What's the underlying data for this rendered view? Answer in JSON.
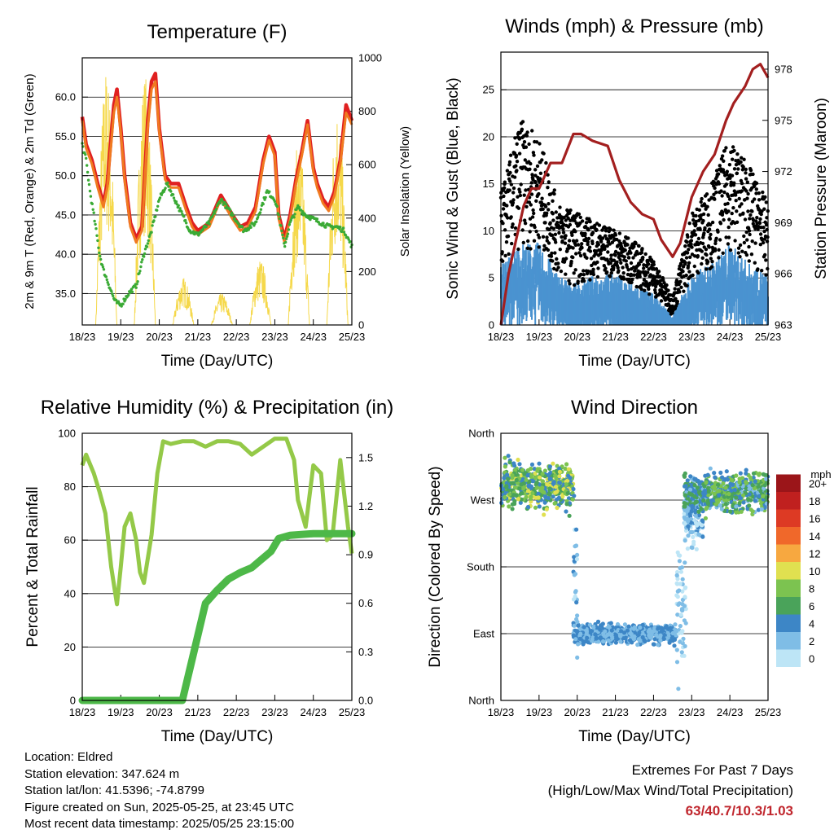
{
  "chart_data": [
    {
      "type": "line",
      "title": "Temperature (F)",
      "xlabel": "Time (Day/UTC)",
      "ylabel": "2m & 9m T (Red, Orange) & 2m Td (Green)",
      "y2label": "Solar Insolation (Yellow)",
      "x_ticks": [
        "18/23",
        "19/23",
        "20/23",
        "21/23",
        "22/23",
        "23/23",
        "24/23",
        "25/23"
      ],
      "ylim": [
        31,
        65
      ],
      "y_ticks": [
        "35.0",
        "40.0",
        "45.0",
        "50.0",
        "55.0",
        "60.0"
      ],
      "y2lim": [
        0,
        1000
      ],
      "y2_ticks": [
        "0",
        "200",
        "400",
        "600",
        "800",
        "1000"
      ],
      "grid": true,
      "series": [
        {
          "name": "2m T",
          "color": "#e02020",
          "x": [
            0,
            0.1,
            0.25,
            0.4,
            0.55,
            0.65,
            0.75,
            0.82,
            0.9,
            1,
            1.1,
            1.25,
            1.4,
            1.55,
            1.7,
            1.8,
            1.9,
            2,
            2.15,
            2.3,
            2.5,
            2.7,
            2.85,
            3,
            3.3,
            3.6,
            3.9,
            4.1,
            4.3,
            4.5,
            4.7,
            4.85,
            5,
            5.1,
            5.25,
            5.4,
            5.55,
            5.7,
            5.85,
            6,
            6.1,
            6.25,
            6.4,
            6.55,
            6.7,
            6.85,
            7
          ],
          "y": [
            57.5,
            54,
            52,
            49,
            46.5,
            49,
            55,
            59,
            61,
            56,
            50,
            44,
            42,
            43.5,
            57,
            62,
            63,
            56,
            50,
            49,
            49,
            46,
            44,
            43,
            44,
            47.5,
            45,
            43.5,
            44,
            46,
            52,
            55,
            53,
            45,
            42,
            45,
            49.5,
            53,
            57,
            51,
            49,
            47,
            46,
            48,
            52,
            59,
            57
          ]
        },
        {
          "name": "9m T",
          "color": "#f07a20",
          "x": [
            0,
            0.1,
            0.25,
            0.4,
            0.55,
            0.65,
            0.75,
            0.82,
            0.9,
            1,
            1.1,
            1.25,
            1.4,
            1.55,
            1.7,
            1.8,
            1.9,
            2,
            2.15,
            2.3,
            2.5,
            2.7,
            2.85,
            3,
            3.3,
            3.6,
            3.9,
            4.1,
            4.3,
            4.5,
            4.7,
            4.85,
            5,
            5.1,
            5.25,
            5.4,
            5.55,
            5.7,
            5.85,
            6,
            6.1,
            6.25,
            6.4,
            6.55,
            6.7,
            6.85,
            7
          ],
          "y": [
            57,
            53.5,
            51.5,
            48.5,
            46,
            48.5,
            54,
            58,
            60,
            55.5,
            49.5,
            43.5,
            41.5,
            43,
            56,
            61,
            62,
            55.5,
            49.5,
            48.5,
            48.5,
            45.5,
            43.5,
            42.5,
            43.5,
            47,
            44.5,
            43,
            43.5,
            45.5,
            51.5,
            54.5,
            52.5,
            44.5,
            41.5,
            44.5,
            49,
            52.5,
            56.5,
            50.5,
            48.5,
            46.5,
            45.5,
            47.5,
            51.5,
            58,
            56.5
          ]
        },
        {
          "name": "2m Td",
          "color": "#3aaa35",
          "x": [
            0,
            0.1,
            0.2,
            0.3,
            0.45,
            0.55,
            0.7,
            0.85,
            1,
            1.2,
            1.4,
            1.6,
            1.8,
            2,
            2.2,
            2.4,
            2.6,
            2.8,
            3,
            3.3,
            3.6,
            3.9,
            4.2,
            4.5,
            4.8,
            5,
            5.1,
            5.25,
            5.4,
            5.6,
            5.8,
            6,
            6.2,
            6.4,
            6.6,
            6.8,
            7
          ],
          "y": [
            54,
            52,
            48,
            45,
            40,
            38,
            36,
            34,
            33.5,
            35,
            36,
            40,
            43,
            47,
            49,
            47,
            45,
            43,
            42.5,
            44,
            47,
            45,
            43,
            44,
            48,
            47,
            45,
            41,
            44,
            46,
            45,
            44.5,
            44,
            43.5,
            43.5,
            43,
            41
          ]
        }
      ],
      "solar_series": {
        "name": "Solar Insolation",
        "color": "#f5d84a",
        "daily_peaks": [
          970,
          950,
          180,
          120,
          250,
          700,
          840
        ]
      }
    },
    {
      "type": "scatter",
      "title": "Winds (mph) & Pressure (mb)",
      "xlabel": "Time (Day/UTC)",
      "ylabel": "Sonic Wind & Gust (Blue, Black)",
      "y2label": "Station Pressure (Maroon)",
      "x_ticks": [
        "18/23",
        "19/23",
        "20/23",
        "21/23",
        "22/23",
        "23/23",
        "24/23",
        "25/23"
      ],
      "ylim": [
        0,
        29
      ],
      "y_ticks": [
        "0",
        "5",
        "10",
        "15",
        "20",
        "25"
      ],
      "y2lim": [
        963,
        979
      ],
      "y2_ticks": [
        "963",
        "966",
        "969",
        "972",
        "975",
        "978"
      ],
      "grid": true,
      "gust_envelope": {
        "x": [
          0,
          0.5,
          1,
          1.5,
          2,
          2.5,
          3,
          3.5,
          4,
          4.5,
          5,
          5.5,
          6,
          6.5,
          7
        ],
        "y": [
          14,
          22,
          20,
          13,
          12,
          11,
          10,
          9,
          7,
          3,
          12,
          15,
          20,
          17,
          13
        ]
      },
      "wind_envelope": {
        "x": [
          0,
          0.5,
          1,
          1.5,
          2,
          2.5,
          3,
          3.5,
          4,
          4.5,
          5,
          5.5,
          6,
          6.5,
          7
        ],
        "y": [
          6,
          8,
          8,
          5,
          4,
          5,
          5,
          4,
          3,
          1,
          5,
          6,
          8,
          6,
          5
        ]
      },
      "pressure": {
        "name": "Station Pressure",
        "color": "#a31f1f",
        "x": [
          0,
          0.2,
          0.4,
          0.6,
          0.8,
          1,
          1.3,
          1.6,
          1.9,
          2.1,
          2.4,
          2.8,
          3.1,
          3.4,
          3.7,
          4,
          4.2,
          4.5,
          4.7,
          5,
          5.3,
          5.6,
          5.9,
          6.1,
          6.4,
          6.6,
          6.8,
          7
        ],
        "y": [
          963,
          966,
          968,
          970,
          971,
          971,
          972.5,
          972.5,
          974.2,
          974.2,
          973.8,
          973.5,
          971.5,
          970.2,
          969.5,
          969.2,
          968,
          967,
          967.8,
          970.5,
          972,
          973,
          975,
          976,
          977,
          978,
          978.3,
          977.5
        ]
      }
    },
    {
      "type": "line",
      "title": "Relative Humidity (%) & Precipitation (in)",
      "xlabel": "Time (Day/UTC)",
      "ylabel": "Percent & Total Rainfall",
      "x_ticks": [
        "18/23",
        "19/23",
        "20/23",
        "21/23",
        "22/23",
        "23/23",
        "24/23",
        "25/23"
      ],
      "ylim": [
        0,
        100
      ],
      "y_ticks": [
        "0",
        "20",
        "40",
        "60",
        "80",
        "100"
      ],
      "y2lim": [
        0,
        1.65
      ],
      "y2_ticks": [
        "0.0",
        "0.3",
        "0.6",
        "0.9",
        "1.2",
        "1.5"
      ],
      "grid": true,
      "series": [
        {
          "name": "Relative Humidity",
          "color": "#94c948",
          "x": [
            0,
            0.1,
            0.3,
            0.45,
            0.6,
            0.75,
            0.9,
            1,
            1.1,
            1.25,
            1.4,
            1.5,
            1.6,
            1.8,
            1.95,
            2.1,
            2.3,
            2.6,
            2.9,
            3.2,
            3.5,
            3.8,
            4.1,
            4.4,
            4.7,
            5,
            5.3,
            5.5,
            5.6,
            5.8,
            6,
            6.2,
            6.35,
            6.5,
            6.7,
            6.9,
            7
          ],
          "y": [
            88,
            92,
            85,
            78,
            70,
            50,
            36,
            50,
            65,
            70,
            60,
            48,
            44,
            62,
            85,
            97,
            96,
            97,
            97,
            95,
            97,
            97,
            96,
            92,
            95,
            98,
            98,
            90,
            75,
            65,
            88,
            85,
            60,
            62,
            90,
            65,
            55
          ]
        },
        {
          "name": "Total Rainfall",
          "color": "#4db848",
          "x": [
            0,
            2.6,
            2.75,
            2.9,
            3.05,
            3.2,
            3.5,
            3.8,
            4.1,
            4.4,
            4.6,
            4.9,
            5.1,
            5.4,
            6,
            7
          ],
          "y": [
            0,
            0,
            0.15,
            0.3,
            0.45,
            0.6,
            0.68,
            0.75,
            0.79,
            0.82,
            0.86,
            0.92,
            1.0,
            1.02,
            1.03,
            1.03
          ]
        }
      ]
    },
    {
      "type": "scatter",
      "title": "Wind Direction",
      "xlabel": "Time (Day/UTC)",
      "ylabel": "Direction (Colored By Speed)",
      "x_ticks": [
        "18/23",
        "19/23",
        "20/23",
        "21/23",
        "22/23",
        "23/23",
        "24/23",
        "25/23"
      ],
      "y_ticks": [
        "North",
        "East",
        "South",
        "West",
        "North"
      ],
      "ylim": [
        0,
        360
      ],
      "grid": true,
      "colorbar": {
        "unit": "mph",
        "labels": [
          "0",
          "2",
          "4",
          "6",
          "8",
          "10",
          "12",
          "14",
          "16",
          "18",
          "20+"
        ],
        "colors": [
          "#bde5f6",
          "#7fbde6",
          "#3d86c6",
          "#4aa35a",
          "#7cc350",
          "#e0e050",
          "#f7a840",
          "#f0682a",
          "#dd3a24",
          "#c0201f",
          "#9b1519"
        ]
      },
      "clusters": [
        {
          "x0": 0,
          "x1": 1.9,
          "dir_mean": 290,
          "dir_spread": 30,
          "speed_lo": 3,
          "speed_hi": 10
        },
        {
          "x0": 1.9,
          "x1": 2.0,
          "dir_mean": 180,
          "dir_spread": 110,
          "speed_lo": 0,
          "speed_hi": 4
        },
        {
          "x0": 1.9,
          "x1": 4.6,
          "dir_mean": 90,
          "dir_spread": 12,
          "speed_lo": 1,
          "speed_hi": 5
        },
        {
          "x0": 4.6,
          "x1": 4.85,
          "dir_mean": 120,
          "dir_spread": 80,
          "speed_lo": 0,
          "speed_hi": 2
        },
        {
          "x0": 4.8,
          "x1": 5.3,
          "dir_mean": 250,
          "dir_spread": 40,
          "speed_lo": 0,
          "speed_hi": 4
        },
        {
          "x0": 4.8,
          "x1": 5.3,
          "dir_mean": 280,
          "dir_spread": 25,
          "speed_lo": 2,
          "speed_hi": 7
        },
        {
          "x0": 5.3,
          "x1": 7.0,
          "dir_mean": 280,
          "dir_spread": 25,
          "speed_lo": 2,
          "speed_hi": 9
        }
      ]
    }
  ],
  "footer": {
    "location": "Location: Eldred",
    "elevation": "Station elevation: 347.624 m",
    "latlon": "Station lat/lon: 41.5396; -74.8799",
    "created": "Figure created on Sun, 2025-05-25, at 23:45 UTC",
    "recent": "Most recent data timestamp: 2025/05/25 23:15:00"
  },
  "extremes": {
    "title": "Extremes For Past 7 Days",
    "subtitle": "(High/Low/Max Wind/Total Precipitation)",
    "values": "63/40.7/10.3/1.03"
  }
}
